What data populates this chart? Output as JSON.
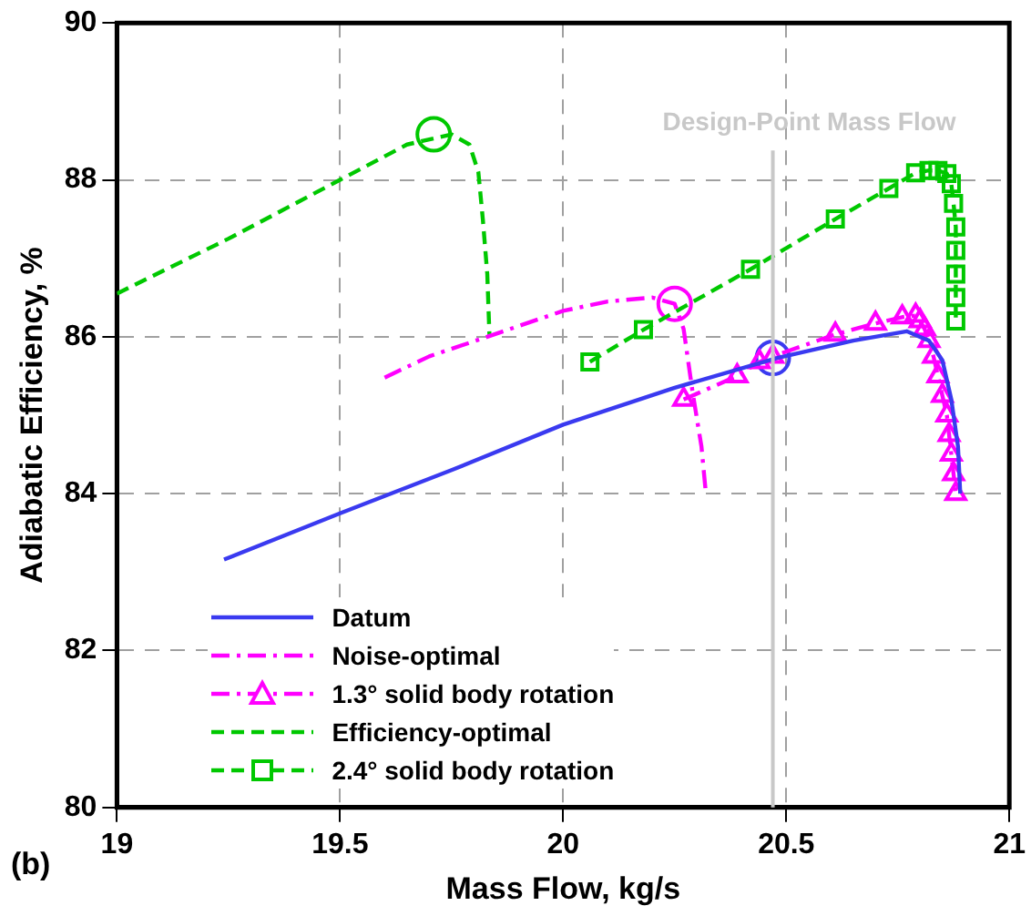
{
  "chart_data": {
    "type": "line",
    "xlabel": "Mass Flow, kg/s",
    "ylabel": "Adiabatic Efficiency, %",
    "xlim": [
      19,
      21
    ],
    "xticks": [
      19,
      19.5,
      20,
      20.5,
      21
    ],
    "ylim": [
      80,
      90
    ],
    "yticks": [
      80,
      82,
      84,
      86,
      88,
      90
    ],
    "grid": true,
    "legend": "bottom left",
    "ref_lines": [
      {
        "axis": "x",
        "value": 20.47,
        "label": "Design-Point Mass Flow",
        "color": "#c8c8c8"
      }
    ],
    "annotations": [
      "(b)"
    ],
    "series": [
      {
        "name": "Datum",
        "color": "#3a3af0",
        "marker": "none",
        "line_style": "solid",
        "x": [
          19.24,
          19.5,
          19.75,
          20.0,
          20.25,
          20.48,
          20.65,
          20.77,
          20.82,
          20.85,
          20.87,
          20.885,
          20.89
        ],
        "values": [
          83.16,
          83.75,
          84.3,
          84.88,
          85.35,
          85.73,
          85.95,
          86.07,
          85.95,
          85.7,
          85.2,
          84.6,
          84.0
        ]
      },
      {
        "name": "Noise-optimal",
        "color": "#ff00ff",
        "marker": "none",
        "line_style": "dashdot",
        "x": [
          19.6,
          19.7,
          19.83,
          20.0,
          20.1,
          20.2,
          20.25,
          20.27,
          20.29,
          20.31,
          20.32
        ],
        "values": [
          85.48,
          85.75,
          86.0,
          86.33,
          86.45,
          86.5,
          86.42,
          86.1,
          85.3,
          84.6,
          84.0
        ]
      },
      {
        "name": "1.3° solid body rotation",
        "color": "#ff00ff",
        "marker": "triangle",
        "line_style": "dashdot",
        "x": [
          20.27,
          20.39,
          20.44,
          20.47,
          20.61,
          20.7,
          20.76,
          20.79,
          20.8,
          20.81,
          20.82,
          20.83,
          20.84,
          20.85,
          20.86,
          20.865,
          20.87,
          20.875,
          20.88
        ],
        "values": [
          85.2,
          85.5,
          85.68,
          85.75,
          86.03,
          86.17,
          86.25,
          86.27,
          86.2,
          86.1,
          85.95,
          85.75,
          85.5,
          85.25,
          85.0,
          84.75,
          84.5,
          84.25,
          84.0
        ]
      },
      {
        "name": "Efficiency-optimal",
        "color": "#00c800",
        "marker": "none",
        "line_style": "dashed",
        "x": [
          19.0,
          19.25,
          19.5,
          19.65,
          19.75,
          19.79,
          19.81,
          19.82,
          19.83,
          19.835
        ],
        "values": [
          86.55,
          87.25,
          88.0,
          88.45,
          88.58,
          88.45,
          88.1,
          87.5,
          86.8,
          86.0
        ]
      },
      {
        "name": "2.4° solid body rotation",
        "color": "#00c800",
        "marker": "square",
        "line_style": "dashed",
        "x": [
          20.06,
          20.18,
          20.42,
          20.61,
          20.73,
          20.79,
          20.82,
          20.84,
          20.86,
          20.87,
          20.875,
          20.88,
          20.88,
          20.88,
          20.88,
          20.88
        ],
        "values": [
          85.68,
          86.09,
          86.86,
          87.5,
          87.89,
          88.09,
          88.12,
          88.12,
          88.08,
          87.95,
          87.7,
          87.4,
          87.1,
          86.8,
          86.5,
          86.2
        ]
      },
      {
        "type": "scatter",
        "color": "#3a3af0",
        "marker": "circle",
        "x": [
          20.47
        ],
        "values": [
          85.73
        ]
      },
      {
        "type": "scatter",
        "color": "#ff00ff",
        "marker": "circle",
        "x": [
          20.25
        ],
        "values": [
          86.42
        ]
      },
      {
        "type": "scatter",
        "color": "#00c800",
        "marker": "circle",
        "x": [
          19.71
        ],
        "values": [
          88.58
        ]
      }
    ]
  }
}
